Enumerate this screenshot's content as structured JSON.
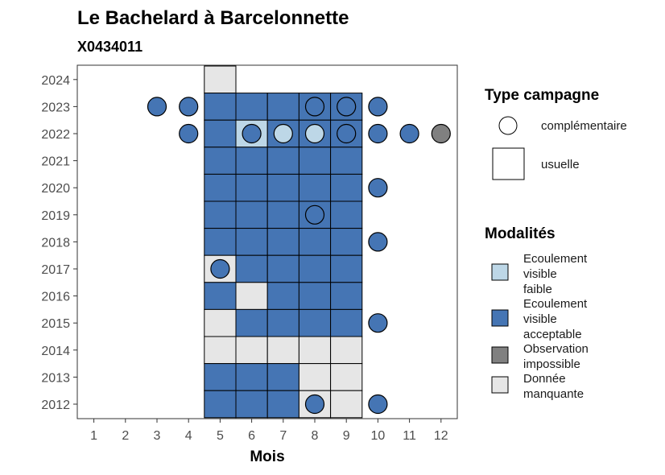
{
  "chart_data": {
    "type": "heatmap",
    "title": "Le Bachelard à Barcelonnette",
    "subtitle": "X0434011",
    "xlabel": "Mois",
    "ylabel": "",
    "x_ticks": [
      1,
      2,
      3,
      4,
      5,
      6,
      7,
      8,
      9,
      10,
      11,
      12
    ],
    "y_ticks": [
      2012,
      2013,
      2014,
      2015,
      2016,
      2017,
      2018,
      2019,
      2020,
      2021,
      2022,
      2023,
      2024
    ],
    "grid": false,
    "legend_placement": "right",
    "colors": {
      "faible": "#bdd7e7",
      "acceptable": "#4575b4",
      "impossible": "#808080",
      "manquante": "#e6e6e6"
    },
    "legend_type": {
      "title": "Type campagne",
      "items": [
        {
          "shape": "circle",
          "label": "complémentaire"
        },
        {
          "shape": "square",
          "label": "usuelle"
        }
      ]
    },
    "legend_modalites": {
      "title": "Modalités",
      "items": [
        {
          "key": "faible",
          "lines": [
            "Ecoulement",
            "visible",
            "faible"
          ]
        },
        {
          "key": "acceptable",
          "lines": [
            "Ecoulement",
            "visible",
            "acceptable"
          ]
        },
        {
          "key": "impossible",
          "lines": [
            "Observation",
            "impossible"
          ]
        },
        {
          "key": "manquante",
          "lines": [
            "Donnée",
            "manquante"
          ]
        }
      ]
    },
    "squares": [
      {
        "month": 5,
        "year": 2024,
        "mod": "manquante"
      },
      {
        "month": 5,
        "year": 2023,
        "mod": "acceptable"
      },
      {
        "month": 6,
        "year": 2023,
        "mod": "acceptable"
      },
      {
        "month": 7,
        "year": 2023,
        "mod": "acceptable"
      },
      {
        "month": 8,
        "year": 2023,
        "mod": "acceptable"
      },
      {
        "month": 9,
        "year": 2023,
        "mod": "acceptable"
      },
      {
        "month": 5,
        "year": 2022,
        "mod": "acceptable"
      },
      {
        "month": 6,
        "year": 2022,
        "mod": "faible"
      },
      {
        "month": 7,
        "year": 2022,
        "mod": "acceptable"
      },
      {
        "month": 8,
        "year": 2022,
        "mod": "acceptable"
      },
      {
        "month": 9,
        "year": 2022,
        "mod": "acceptable"
      },
      {
        "month": 5,
        "year": 2021,
        "mod": "acceptable"
      },
      {
        "month": 6,
        "year": 2021,
        "mod": "acceptable"
      },
      {
        "month": 7,
        "year": 2021,
        "mod": "acceptable"
      },
      {
        "month": 8,
        "year": 2021,
        "mod": "acceptable"
      },
      {
        "month": 9,
        "year": 2021,
        "mod": "acceptable"
      },
      {
        "month": 5,
        "year": 2020,
        "mod": "acceptable"
      },
      {
        "month": 6,
        "year": 2020,
        "mod": "acceptable"
      },
      {
        "month": 7,
        "year": 2020,
        "mod": "acceptable"
      },
      {
        "month": 8,
        "year": 2020,
        "mod": "acceptable"
      },
      {
        "month": 9,
        "year": 2020,
        "mod": "acceptable"
      },
      {
        "month": 5,
        "year": 2019,
        "mod": "acceptable"
      },
      {
        "month": 6,
        "year": 2019,
        "mod": "acceptable"
      },
      {
        "month": 7,
        "year": 2019,
        "mod": "acceptable"
      },
      {
        "month": 8,
        "year": 2019,
        "mod": "acceptable"
      },
      {
        "month": 9,
        "year": 2019,
        "mod": "acceptable"
      },
      {
        "month": 5,
        "year": 2018,
        "mod": "acceptable"
      },
      {
        "month": 6,
        "year": 2018,
        "mod": "acceptable"
      },
      {
        "month": 7,
        "year": 2018,
        "mod": "acceptable"
      },
      {
        "month": 8,
        "year": 2018,
        "mod": "acceptable"
      },
      {
        "month": 9,
        "year": 2018,
        "mod": "acceptable"
      },
      {
        "month": 5,
        "year": 2017,
        "mod": "manquante"
      },
      {
        "month": 6,
        "year": 2017,
        "mod": "acceptable"
      },
      {
        "month": 7,
        "year": 2017,
        "mod": "acceptable"
      },
      {
        "month": 8,
        "year": 2017,
        "mod": "acceptable"
      },
      {
        "month": 9,
        "year": 2017,
        "mod": "acceptable"
      },
      {
        "month": 5,
        "year": 2016,
        "mod": "acceptable"
      },
      {
        "month": 6,
        "year": 2016,
        "mod": "manquante"
      },
      {
        "month": 7,
        "year": 2016,
        "mod": "acceptable"
      },
      {
        "month": 8,
        "year": 2016,
        "mod": "acceptable"
      },
      {
        "month": 9,
        "year": 2016,
        "mod": "acceptable"
      },
      {
        "month": 5,
        "year": 2015,
        "mod": "manquante"
      },
      {
        "month": 6,
        "year": 2015,
        "mod": "acceptable"
      },
      {
        "month": 7,
        "year": 2015,
        "mod": "acceptable"
      },
      {
        "month": 8,
        "year": 2015,
        "mod": "acceptable"
      },
      {
        "month": 9,
        "year": 2015,
        "mod": "acceptable"
      },
      {
        "month": 5,
        "year": 2014,
        "mod": "manquante"
      },
      {
        "month": 6,
        "year": 2014,
        "mod": "manquante"
      },
      {
        "month": 7,
        "year": 2014,
        "mod": "manquante"
      },
      {
        "month": 8,
        "year": 2014,
        "mod": "manquante"
      },
      {
        "month": 9,
        "year": 2014,
        "mod": "manquante"
      },
      {
        "month": 5,
        "year": 2013,
        "mod": "acceptable"
      },
      {
        "month": 6,
        "year": 2013,
        "mod": "acceptable"
      },
      {
        "month": 7,
        "year": 2013,
        "mod": "acceptable"
      },
      {
        "month": 8,
        "year": 2013,
        "mod": "manquante"
      },
      {
        "month": 9,
        "year": 2013,
        "mod": "manquante"
      },
      {
        "month": 5,
        "year": 2012,
        "mod": "acceptable"
      },
      {
        "month": 6,
        "year": 2012,
        "mod": "acceptable"
      },
      {
        "month": 7,
        "year": 2012,
        "mod": "acceptable"
      },
      {
        "month": 8,
        "year": 2012,
        "mod": "manquante"
      },
      {
        "month": 9,
        "year": 2012,
        "mod": "manquante"
      }
    ],
    "circles": [
      {
        "month": 3,
        "year": 2023,
        "mod": "acceptable"
      },
      {
        "month": 4,
        "year": 2023,
        "mod": "acceptable"
      },
      {
        "month": 8,
        "year": 2023,
        "mod": "acceptable"
      },
      {
        "month": 9,
        "year": 2023,
        "mod": "acceptable"
      },
      {
        "month": 10,
        "year": 2023,
        "mod": "acceptable"
      },
      {
        "month": 4,
        "year": 2022,
        "mod": "acceptable"
      },
      {
        "month": 6,
        "year": 2022,
        "mod": "acceptable"
      },
      {
        "month": 7,
        "year": 2022,
        "mod": "faible"
      },
      {
        "month": 8,
        "year": 2022,
        "mod": "faible"
      },
      {
        "month": 9,
        "year": 2022,
        "mod": "acceptable"
      },
      {
        "month": 10,
        "year": 2022,
        "mod": "acceptable"
      },
      {
        "month": 11,
        "year": 2022,
        "mod": "acceptable"
      },
      {
        "month": 12,
        "year": 2022,
        "mod": "impossible"
      },
      {
        "month": 10,
        "year": 2020,
        "mod": "acceptable"
      },
      {
        "month": 8,
        "year": 2019,
        "mod": "acceptable"
      },
      {
        "month": 10,
        "year": 2018,
        "mod": "acceptable"
      },
      {
        "month": 5,
        "year": 2017,
        "mod": "acceptable"
      },
      {
        "month": 10,
        "year": 2015,
        "mod": "acceptable"
      },
      {
        "month": 8,
        "year": 2012,
        "mod": "acceptable"
      },
      {
        "month": 10,
        "year": 2012,
        "mod": "acceptable"
      }
    ]
  }
}
